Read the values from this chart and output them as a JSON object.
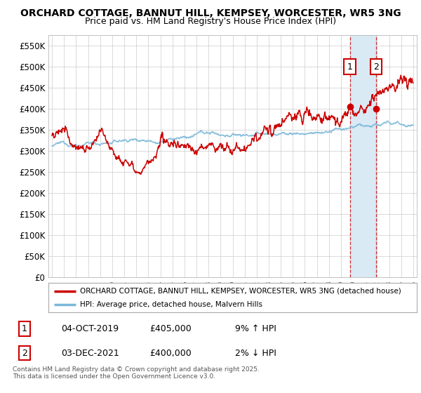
{
  "title_line1": "ORCHARD COTTAGE, BANNUT HILL, KEMPSEY, WORCESTER, WR5 3NG",
  "title_line2": "Price paid vs. HM Land Registry's House Price Index (HPI)",
  "ylim": [
    0,
    575000
  ],
  "yticks": [
    0,
    50000,
    100000,
    150000,
    200000,
    250000,
    300000,
    350000,
    400000,
    450000,
    500000,
    550000
  ],
  "ytick_labels": [
    "£0",
    "£50K",
    "£100K",
    "£150K",
    "£200K",
    "£250K",
    "£300K",
    "£350K",
    "£400K",
    "£450K",
    "£500K",
    "£550K"
  ],
  "hpi_color": "#7ab8d9",
  "price_color": "#cc0000",
  "transaction1_date": 2019.75,
  "transaction1_price": 405000,
  "transaction1_label": "1",
  "transaction2_date": 2021.92,
  "transaction2_price": 400000,
  "transaction2_label": "2",
  "shade_color": "#daeaf5",
  "legend_line1": "ORCHARD COTTAGE, BANNUT HILL, KEMPSEY, WORCESTER, WR5 3NG (detached house)",
  "legend_line2": "HPI: Average price, detached house, Malvern Hills",
  "table_row1_num": "1",
  "table_row1_date": "04-OCT-2019",
  "table_row1_price": "£405,000",
  "table_row1_hpi": "9% ↑ HPI",
  "table_row2_num": "2",
  "table_row2_date": "03-DEC-2021",
  "table_row2_price": "£400,000",
  "table_row2_hpi": "2% ↓ HPI",
  "footnote": "Contains HM Land Registry data © Crown copyright and database right 2025.\nThis data is licensed under the Open Government Licence v3.0.",
  "background_color": "#ffffff",
  "grid_color": "#cccccc"
}
